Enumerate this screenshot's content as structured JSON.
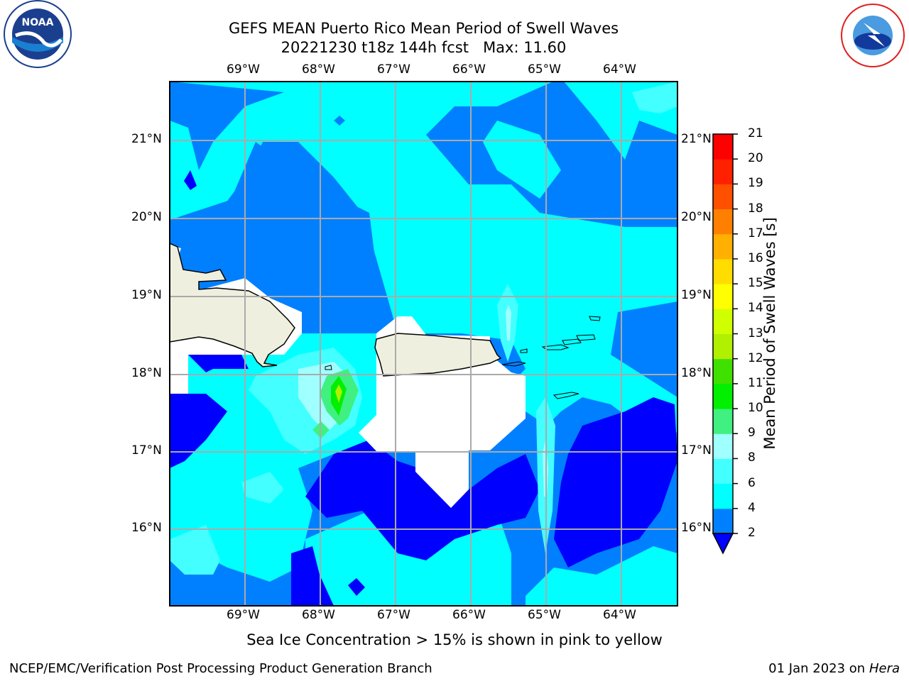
{
  "title": {
    "line1": "GEFS MEAN Puerto Rico Mean Period of Swell Waves",
    "line2": "20221230 t18z 144h fcst",
    "max_label": "Max: 11.60"
  },
  "logos": {
    "left": {
      "icon": "noaa-logo-icon",
      "text": "NOAA"
    },
    "right": {
      "icon": "nws-logo-icon",
      "text": "NATIONAL WEATHER SERVICE"
    }
  },
  "map": {
    "lon_labels": [
      "69°W",
      "68°W",
      "67°W",
      "66°W",
      "65°W",
      "64°W"
    ],
    "lat_labels": [
      "21°N",
      "20°N",
      "19°N",
      "18°N",
      "17°N",
      "16°N"
    ]
  },
  "colorbar": {
    "label": "Mean Period of Swell Waves [s]",
    "ticks": [
      "2",
      "4",
      "6",
      "8",
      "9",
      "10",
      "11",
      "12",
      "13",
      "14",
      "15",
      "16",
      "17",
      "18",
      "19",
      "20",
      "21"
    ],
    "colors": [
      "#0000ff",
      "#0080ff",
      "#00ffff",
      "#44ffff",
      "#a0ffff",
      "#40f080",
      "#00f000",
      "#40e000",
      "#b0f000",
      "#d0ff00",
      "#ffff00",
      "#ffdd00",
      "#ffb000",
      "#ff8000",
      "#ff5000",
      "#ff2000",
      "#ff0000"
    ]
  },
  "caption": "Sea Ice Concentration > 15% is shown in pink to yellow",
  "footer": {
    "left": "NCEP/EMC/Verification Post Processing Product Generation Branch",
    "date": "01 Jan 2023 on ",
    "host": "Hera"
  }
}
